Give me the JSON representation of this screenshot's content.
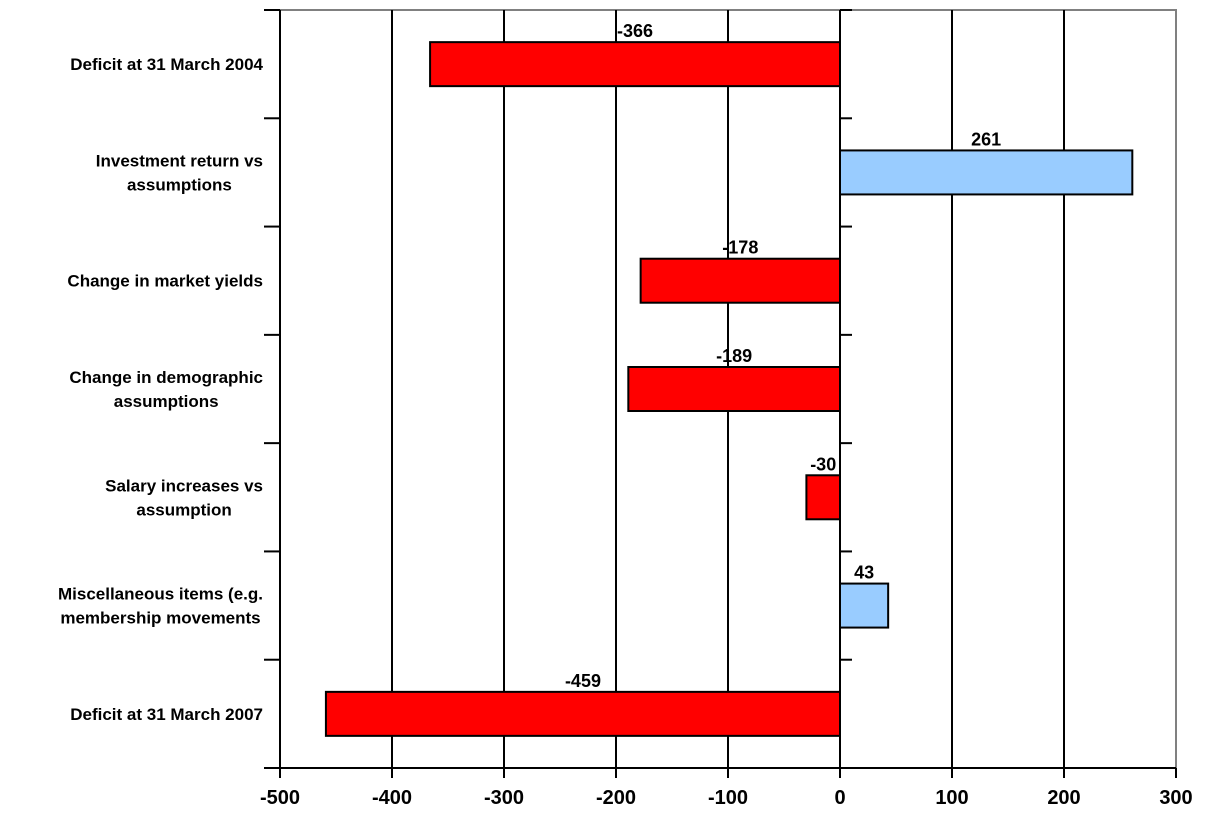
{
  "chart_data": {
    "type": "bar",
    "orientation": "horizontal",
    "categories": [
      [
        "Deficit at 31 March 2004"
      ],
      [
        "Investment return vs",
        "assumptions"
      ],
      [
        "Change in market yields"
      ],
      [
        "Change in demographic",
        "assumptions"
      ],
      [
        "Salary increases vs",
        "assumption"
      ],
      [
        "Miscellaneous items (e.g.",
        "membership movements"
      ],
      [
        "Deficit at 31 March 2007"
      ]
    ],
    "values": [
      -366,
      261,
      -178,
      -189,
      -30,
      43,
      -459
    ],
    "data_labels": [
      "-366",
      "261",
      "-178",
      "-189",
      "-30",
      "43",
      "-459"
    ],
    "xlim": [
      -500,
      300
    ],
    "xticks": [
      -500,
      -400,
      -300,
      -200,
      -100,
      0,
      100,
      200,
      300
    ],
    "xtick_labels": [
      "-500",
      "-400",
      "-300",
      "-200",
      "-100",
      "0",
      "100",
      "200",
      "300"
    ],
    "grid": "vertical",
    "title": "",
    "xlabel": "",
    "ylabel": "",
    "colors": {
      "negative": "#ff0000",
      "positive": "#99ccff",
      "outline": "#000000",
      "frame": "#808080"
    }
  }
}
